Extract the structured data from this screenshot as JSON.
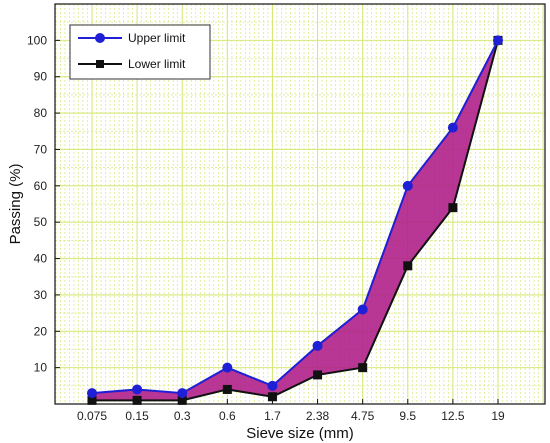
{
  "chart_data": {
    "type": "line",
    "categories": [
      "0.075",
      "0.15",
      "0.3",
      "0.6",
      "1.7",
      "2.38",
      "4.75",
      "9.5",
      "12.5",
      "19"
    ],
    "series": [
      {
        "name": "Upper limit",
        "values": [
          3,
          4,
          3,
          10,
          5,
          16,
          26,
          60,
          76,
          100
        ],
        "color": "#1f1fd6",
        "marker": "circle"
      },
      {
        "name": "Lower limit",
        "values": [
          1,
          1,
          1,
          4,
          2,
          8,
          10,
          38,
          54,
          100
        ],
        "color": "#111111",
        "marker": "square"
      }
    ],
    "fill_between": {
      "color": "#b0208a"
    },
    "xlabel": "Sieve size (mm)",
    "ylabel": "Passing (%)",
    "ylim": [
      0,
      110
    ],
    "yticks": [
      10,
      20,
      30,
      40,
      50,
      60,
      70,
      80,
      90,
      100
    ],
    "grid": true,
    "grid_color": "#d8e87a",
    "legend_position": "top-left"
  }
}
